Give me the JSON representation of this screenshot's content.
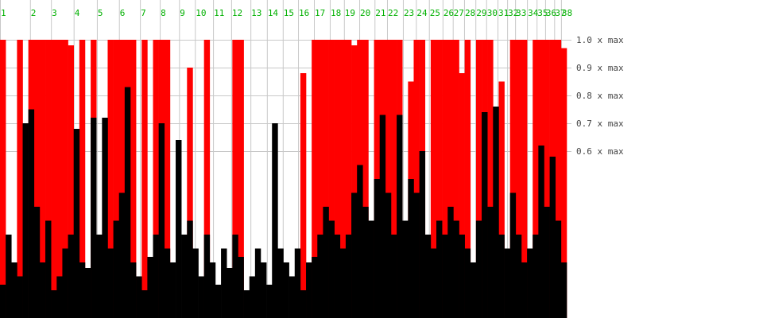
{
  "chart_data": {
    "type": "bar",
    "x": [
      0,
      1,
      2,
      3,
      4,
      5,
      6,
      7,
      8,
      9,
      10,
      11,
      12,
      13,
      14,
      15,
      16,
      17,
      18,
      19,
      20,
      21,
      22,
      23,
      24,
      25,
      26,
      27,
      28,
      29,
      30,
      31,
      32,
      33,
      34,
      35,
      36,
      37,
      38,
      39,
      40,
      41,
      42,
      43,
      44,
      45,
      46,
      47,
      48,
      49,
      50,
      51,
      52,
      53,
      54,
      55,
      56,
      57,
      58,
      59,
      60,
      61,
      62,
      63,
      64,
      65,
      66,
      67,
      68,
      69,
      70,
      71,
      72,
      73,
      74,
      75,
      76,
      77,
      78,
      79,
      80,
      81,
      82,
      83,
      84,
      85,
      86,
      87,
      88,
      89,
      90,
      91,
      92,
      93,
      94,
      95,
      96,
      97,
      98,
      99
    ],
    "series": [
      {
        "color": "#ff0000",
        "values": [
          1,
          0,
          0,
          1,
          0,
          1,
          1,
          1,
          1,
          1,
          1,
          1,
          0.98,
          0,
          1,
          0,
          1,
          0,
          0,
          1,
          1,
          1,
          1,
          1,
          0,
          1,
          0,
          1,
          1,
          1,
          0,
          0,
          0,
          0.9,
          0,
          0,
          1,
          0,
          0,
          0,
          0,
          1,
          1,
          0,
          0,
          0,
          0,
          0,
          0,
          0,
          0,
          0,
          0,
          0.88,
          0,
          1,
          1,
          1,
          1,
          1,
          1,
          1,
          0.98,
          1,
          1,
          0,
          1,
          1,
          1,
          1,
          1,
          0,
          0.85,
          1,
          1,
          0,
          1,
          1,
          1,
          1,
          1,
          0.88,
          1,
          0,
          1,
          1,
          1,
          0,
          0.85,
          0,
          1,
          1,
          1,
          0,
          1,
          1,
          1,
          1,
          1,
          0.97
        ]
      },
      {
        "color": "#000000",
        "values": [
          0.12,
          0.3,
          0.2,
          0.15,
          0.7,
          0.75,
          0.4,
          0.2,
          0.35,
          0.1,
          0.15,
          0.25,
          0.3,
          0.68,
          0.2,
          0.18,
          0.72,
          0.3,
          0.72,
          0.25,
          0.35,
          0.45,
          0.83,
          0.2,
          0.15,
          0.1,
          0.22,
          0.3,
          0.7,
          0.25,
          0.2,
          0.64,
          0.3,
          0.35,
          0.25,
          0.15,
          0.3,
          0.2,
          0.12,
          0.25,
          0.18,
          0.3,
          0.22,
          0.1,
          0.15,
          0.25,
          0.2,
          0.12,
          0.7,
          0.25,
          0.2,
          0.15,
          0.25,
          0.1,
          0.2,
          0.22,
          0.3,
          0.4,
          0.35,
          0.3,
          0.25,
          0.3,
          0.45,
          0.55,
          0.4,
          0.35,
          0.5,
          0.73,
          0.45,
          0.3,
          0.73,
          0.35,
          0.5,
          0.45,
          0.6,
          0.3,
          0.25,
          0.35,
          0.3,
          0.4,
          0.35,
          0.3,
          0.25,
          0.2,
          0.35,
          0.74,
          0.4,
          0.76,
          0.3,
          0.25,
          0.45,
          0.3,
          0.2,
          0.25,
          0.3,
          0.62,
          0.4,
          0.58,
          0.35,
          0.2
        ]
      }
    ],
    "xlim": [
      0,
      100
    ],
    "xticks": [
      {
        "value": 0,
        "label": "1"
      },
      {
        "value": 5.3,
        "label": "2"
      },
      {
        "value": 9.0,
        "label": "3"
      },
      {
        "value": 13.0,
        "label": "4"
      },
      {
        "value": 17.1,
        "label": "5"
      },
      {
        "value": 21.0,
        "label": "6"
      },
      {
        "value": 24.7,
        "label": "7"
      },
      {
        "value": 28.2,
        "label": "8"
      },
      {
        "value": 31.6,
        "label": "9"
      },
      {
        "value": 34.4,
        "label": "10"
      },
      {
        "value": 37.6,
        "label": "11"
      },
      {
        "value": 40.8,
        "label": "12"
      },
      {
        "value": 44.2,
        "label": "13"
      },
      {
        "value": 47.1,
        "label": "14"
      },
      {
        "value": 49.9,
        "label": "15"
      },
      {
        "value": 52.6,
        "label": "16"
      },
      {
        "value": 55.4,
        "label": "17"
      },
      {
        "value": 58.2,
        "label": "18"
      },
      {
        "value": 60.7,
        "label": "19"
      },
      {
        "value": 63.4,
        "label": "20"
      },
      {
        "value": 66.1,
        "label": "21"
      },
      {
        "value": 68.3,
        "label": "22"
      },
      {
        "value": 71.1,
        "label": "23"
      },
      {
        "value": 73.4,
        "label": "24"
      },
      {
        "value": 75.7,
        "label": "25"
      },
      {
        "value": 78.1,
        "label": "26"
      },
      {
        "value": 79.9,
        "label": "27"
      },
      {
        "value": 81.9,
        "label": "28"
      },
      {
        "value": 83.9,
        "label": "29"
      },
      {
        "value": 85.8,
        "label": "30"
      },
      {
        "value": 87.8,
        "label": "31"
      },
      {
        "value": 89.5,
        "label": "32"
      },
      {
        "value": 90.9,
        "label": "33"
      },
      {
        "value": 93.0,
        "label": "34"
      },
      {
        "value": 94.7,
        "label": "35"
      },
      {
        "value": 96.2,
        "label": "36"
      },
      {
        "value": 97.8,
        "label": "37"
      },
      {
        "value": 99.0,
        "label": "38"
      }
    ],
    "xtick_color": "#00b000",
    "ylim": [
      0,
      1
    ],
    "yticks": [
      {
        "value": 1.0,
        "label": "1.0 x max"
      },
      {
        "value": 0.9,
        "label": "0.9 x max"
      },
      {
        "value": 0.8,
        "label": "0.8 x max"
      },
      {
        "value": 0.7,
        "label": "0.7 x max"
      },
      {
        "value": 0.6,
        "label": "0.6 x max"
      }
    ],
    "grid": true
  }
}
